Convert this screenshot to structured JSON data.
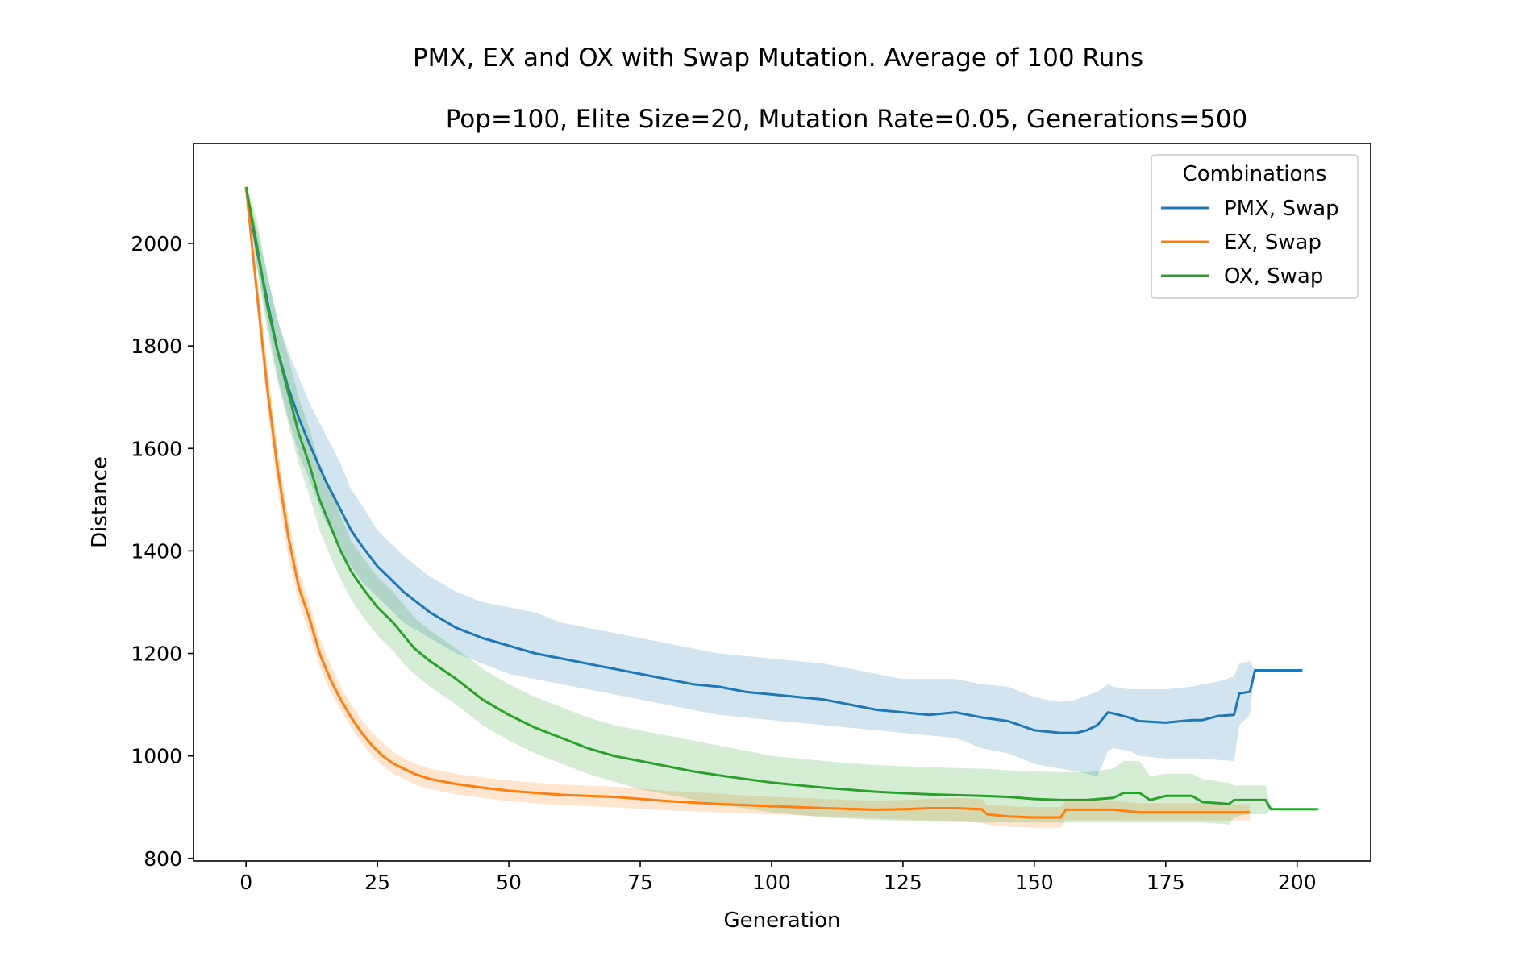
{
  "chart_data": {
    "type": "line",
    "title": "PMX, EX and OX with Swap Mutation. Average of 100 Runs",
    "subtitle": "Pop=100, Elite Size=20, Mutation Rate=0.05, Generations=500",
    "xlabel": "Generation",
    "ylabel": "Distance",
    "xlim": [
      -10,
      214
    ],
    "ylim": [
      795,
      2195
    ],
    "xticks": [
      0,
      25,
      50,
      75,
      100,
      125,
      150,
      175,
      200
    ],
    "yticks": [
      800,
      1000,
      1200,
      1400,
      1600,
      1800,
      2000
    ],
    "grid": false,
    "legend": {
      "title": "Combinations",
      "position": "top-right"
    },
    "series": [
      {
        "name": "PMX, Swap",
        "color": "#1f77b4",
        "x": [
          0,
          2,
          4,
          6,
          8,
          10,
          12,
          15,
          18,
          20,
          22,
          25,
          28,
          30,
          35,
          40,
          45,
          50,
          55,
          60,
          65,
          70,
          75,
          80,
          85,
          90,
          95,
          100,
          105,
          110,
          115,
          120,
          125,
          130,
          135,
          140,
          145,
          150,
          152,
          155,
          158,
          160,
          162,
          164,
          165,
          168,
          170,
          175,
          180,
          182,
          185,
          188,
          189,
          191,
          192,
          195,
          198,
          201
        ],
        "y": [
          2110,
          1990,
          1890,
          1790,
          1720,
          1660,
          1610,
          1540,
          1480,
          1440,
          1410,
          1370,
          1340,
          1320,
          1280,
          1250,
          1230,
          1215,
          1200,
          1190,
          1180,
          1170,
          1160,
          1150,
          1140,
          1135,
          1125,
          1120,
          1115,
          1110,
          1100,
          1090,
          1085,
          1080,
          1085,
          1075,
          1068,
          1050,
          1048,
          1045,
          1045,
          1050,
          1060,
          1085,
          1083,
          1075,
          1068,
          1065,
          1070,
          1070,
          1078,
          1080,
          1122,
          1125,
          1167,
          1167,
          1167,
          1167
        ],
        "lower": [
          2110,
          1960,
          1850,
          1740,
          1660,
          1590,
          1540,
          1460,
          1400,
          1370,
          1340,
          1310,
          1280,
          1260,
          1230,
          1200,
          1180,
          1160,
          1150,
          1140,
          1130,
          1120,
          1110,
          1100,
          1090,
          1080,
          1075,
          1070,
          1065,
          1060,
          1055,
          1050,
          1045,
          1040,
          1035,
          1015,
          1005,
          985,
          980,
          975,
          970,
          965,
          960,
          1010,
          1015,
          1010,
          1000,
          995,
          995,
          995,
          992,
          990,
          1060,
          1080,
          1167,
          1167,
          1167,
          1167
        ],
        "upper": [
          2110,
          2030,
          1940,
          1850,
          1790,
          1740,
          1690,
          1630,
          1570,
          1520,
          1490,
          1440,
          1410,
          1390,
          1350,
          1320,
          1300,
          1290,
          1280,
          1260,
          1250,
          1240,
          1230,
          1220,
          1210,
          1200,
          1195,
          1190,
          1185,
          1180,
          1170,
          1160,
          1150,
          1150,
          1150,
          1140,
          1135,
          1115,
          1110,
          1105,
          1110,
          1118,
          1125,
          1140,
          1135,
          1130,
          1130,
          1130,
          1135,
          1140,
          1145,
          1155,
          1180,
          1185,
          1167,
          1167,
          1167,
          1167
        ]
      },
      {
        "name": "EX, Swap",
        "color": "#ff7f0e",
        "x": [
          0,
          2,
          4,
          6,
          8,
          10,
          12,
          14,
          16,
          18,
          20,
          22,
          24,
          26,
          28,
          30,
          32,
          35,
          40,
          45,
          50,
          55,
          60,
          70,
          80,
          90,
          100,
          110,
          120,
          125,
          130,
          135,
          140,
          141,
          145,
          150,
          155,
          156,
          160,
          165,
          170,
          175,
          180,
          185,
          190,
          191
        ],
        "y": [
          2110,
          1910,
          1720,
          1560,
          1430,
          1330,
          1270,
          1200,
          1150,
          1110,
          1075,
          1045,
          1020,
          1000,
          985,
          975,
          965,
          955,
          945,
          938,
          932,
          928,
          924,
          920,
          912,
          906,
          902,
          898,
          895,
          896,
          898,
          898,
          896,
          886,
          882,
          880,
          880,
          895,
          895,
          895,
          890,
          890,
          890,
          890,
          890,
          890
        ],
        "lower": [
          2110,
          1880,
          1680,
          1520,
          1390,
          1300,
          1240,
          1175,
          1125,
          1090,
          1055,
          1025,
          1000,
          980,
          965,
          955,
          945,
          935,
          925,
          918,
          912,
          908,
          904,
          900,
          894,
          890,
          886,
          882,
          878,
          876,
          874,
          872,
          870,
          866,
          862,
          860,
          860,
          875,
          875,
          875,
          874,
          874,
          874,
          874,
          874,
          874
        ],
        "upper": [
          2110,
          1940,
          1760,
          1600,
          1470,
          1360,
          1300,
          1230,
          1180,
          1135,
          1100,
          1070,
          1045,
          1025,
          1008,
          995,
          985,
          975,
          965,
          958,
          952,
          948,
          944,
          940,
          932,
          926,
          920,
          916,
          912,
          914,
          916,
          918,
          916,
          905,
          902,
          900,
          900,
          912,
          912,
          912,
          908,
          908,
          908,
          906,
          906,
          906
        ]
      },
      {
        "name": "OX, Swap",
        "color": "#2ca02c",
        "x": [
          0,
          2,
          4,
          6,
          8,
          10,
          12,
          14,
          16,
          18,
          20,
          22,
          25,
          28,
          30,
          32,
          35,
          40,
          45,
          50,
          55,
          60,
          65,
          70,
          75,
          80,
          85,
          90,
          95,
          100,
          110,
          120,
          130,
          140,
          145,
          150,
          155,
          160,
          165,
          167,
          170,
          172,
          175,
          180,
          182,
          185,
          187,
          188,
          190,
          192,
          194,
          195,
          200,
          204
        ],
        "y": [
          2110,
          2000,
          1880,
          1790,
          1710,
          1630,
          1570,
          1500,
          1450,
          1400,
          1360,
          1330,
          1290,
          1260,
          1235,
          1210,
          1185,
          1150,
          1110,
          1080,
          1055,
          1035,
          1015,
          1000,
          990,
          980,
          970,
          962,
          955,
          948,
          938,
          930,
          925,
          922,
          920,
          916,
          914,
          914,
          918,
          928,
          928,
          914,
          922,
          922,
          910,
          908,
          906,
          914,
          914,
          914,
          914,
          896,
          896,
          896
        ],
        "lower": [
          2110,
          1960,
          1830,
          1730,
          1650,
          1570,
          1510,
          1440,
          1390,
          1345,
          1305,
          1275,
          1235,
          1205,
          1180,
          1160,
          1135,
          1100,
          1060,
          1030,
          1005,
          985,
          965,
          950,
          935,
          925,
          915,
          905,
          898,
          890,
          880,
          875,
          872,
          870,
          870,
          870,
          870,
          870,
          870,
          870,
          870,
          870,
          870,
          870,
          870,
          868,
          866,
          880,
          886,
          886,
          886,
          896,
          896,
          896
        ],
        "upper": [
          2110,
          2050,
          1940,
          1850,
          1780,
          1700,
          1640,
          1570,
          1520,
          1470,
          1420,
          1390,
          1350,
          1320,
          1295,
          1270,
          1245,
          1210,
          1170,
          1140,
          1115,
          1095,
          1075,
          1060,
          1050,
          1040,
          1030,
          1020,
          1010,
          1000,
          990,
          982,
          978,
          975,
          972,
          970,
          968,
          968,
          975,
          990,
          990,
          960,
          965,
          965,
          955,
          950,
          948,
          942,
          942,
          942,
          942,
          896,
          896,
          896
        ]
      }
    ]
  }
}
